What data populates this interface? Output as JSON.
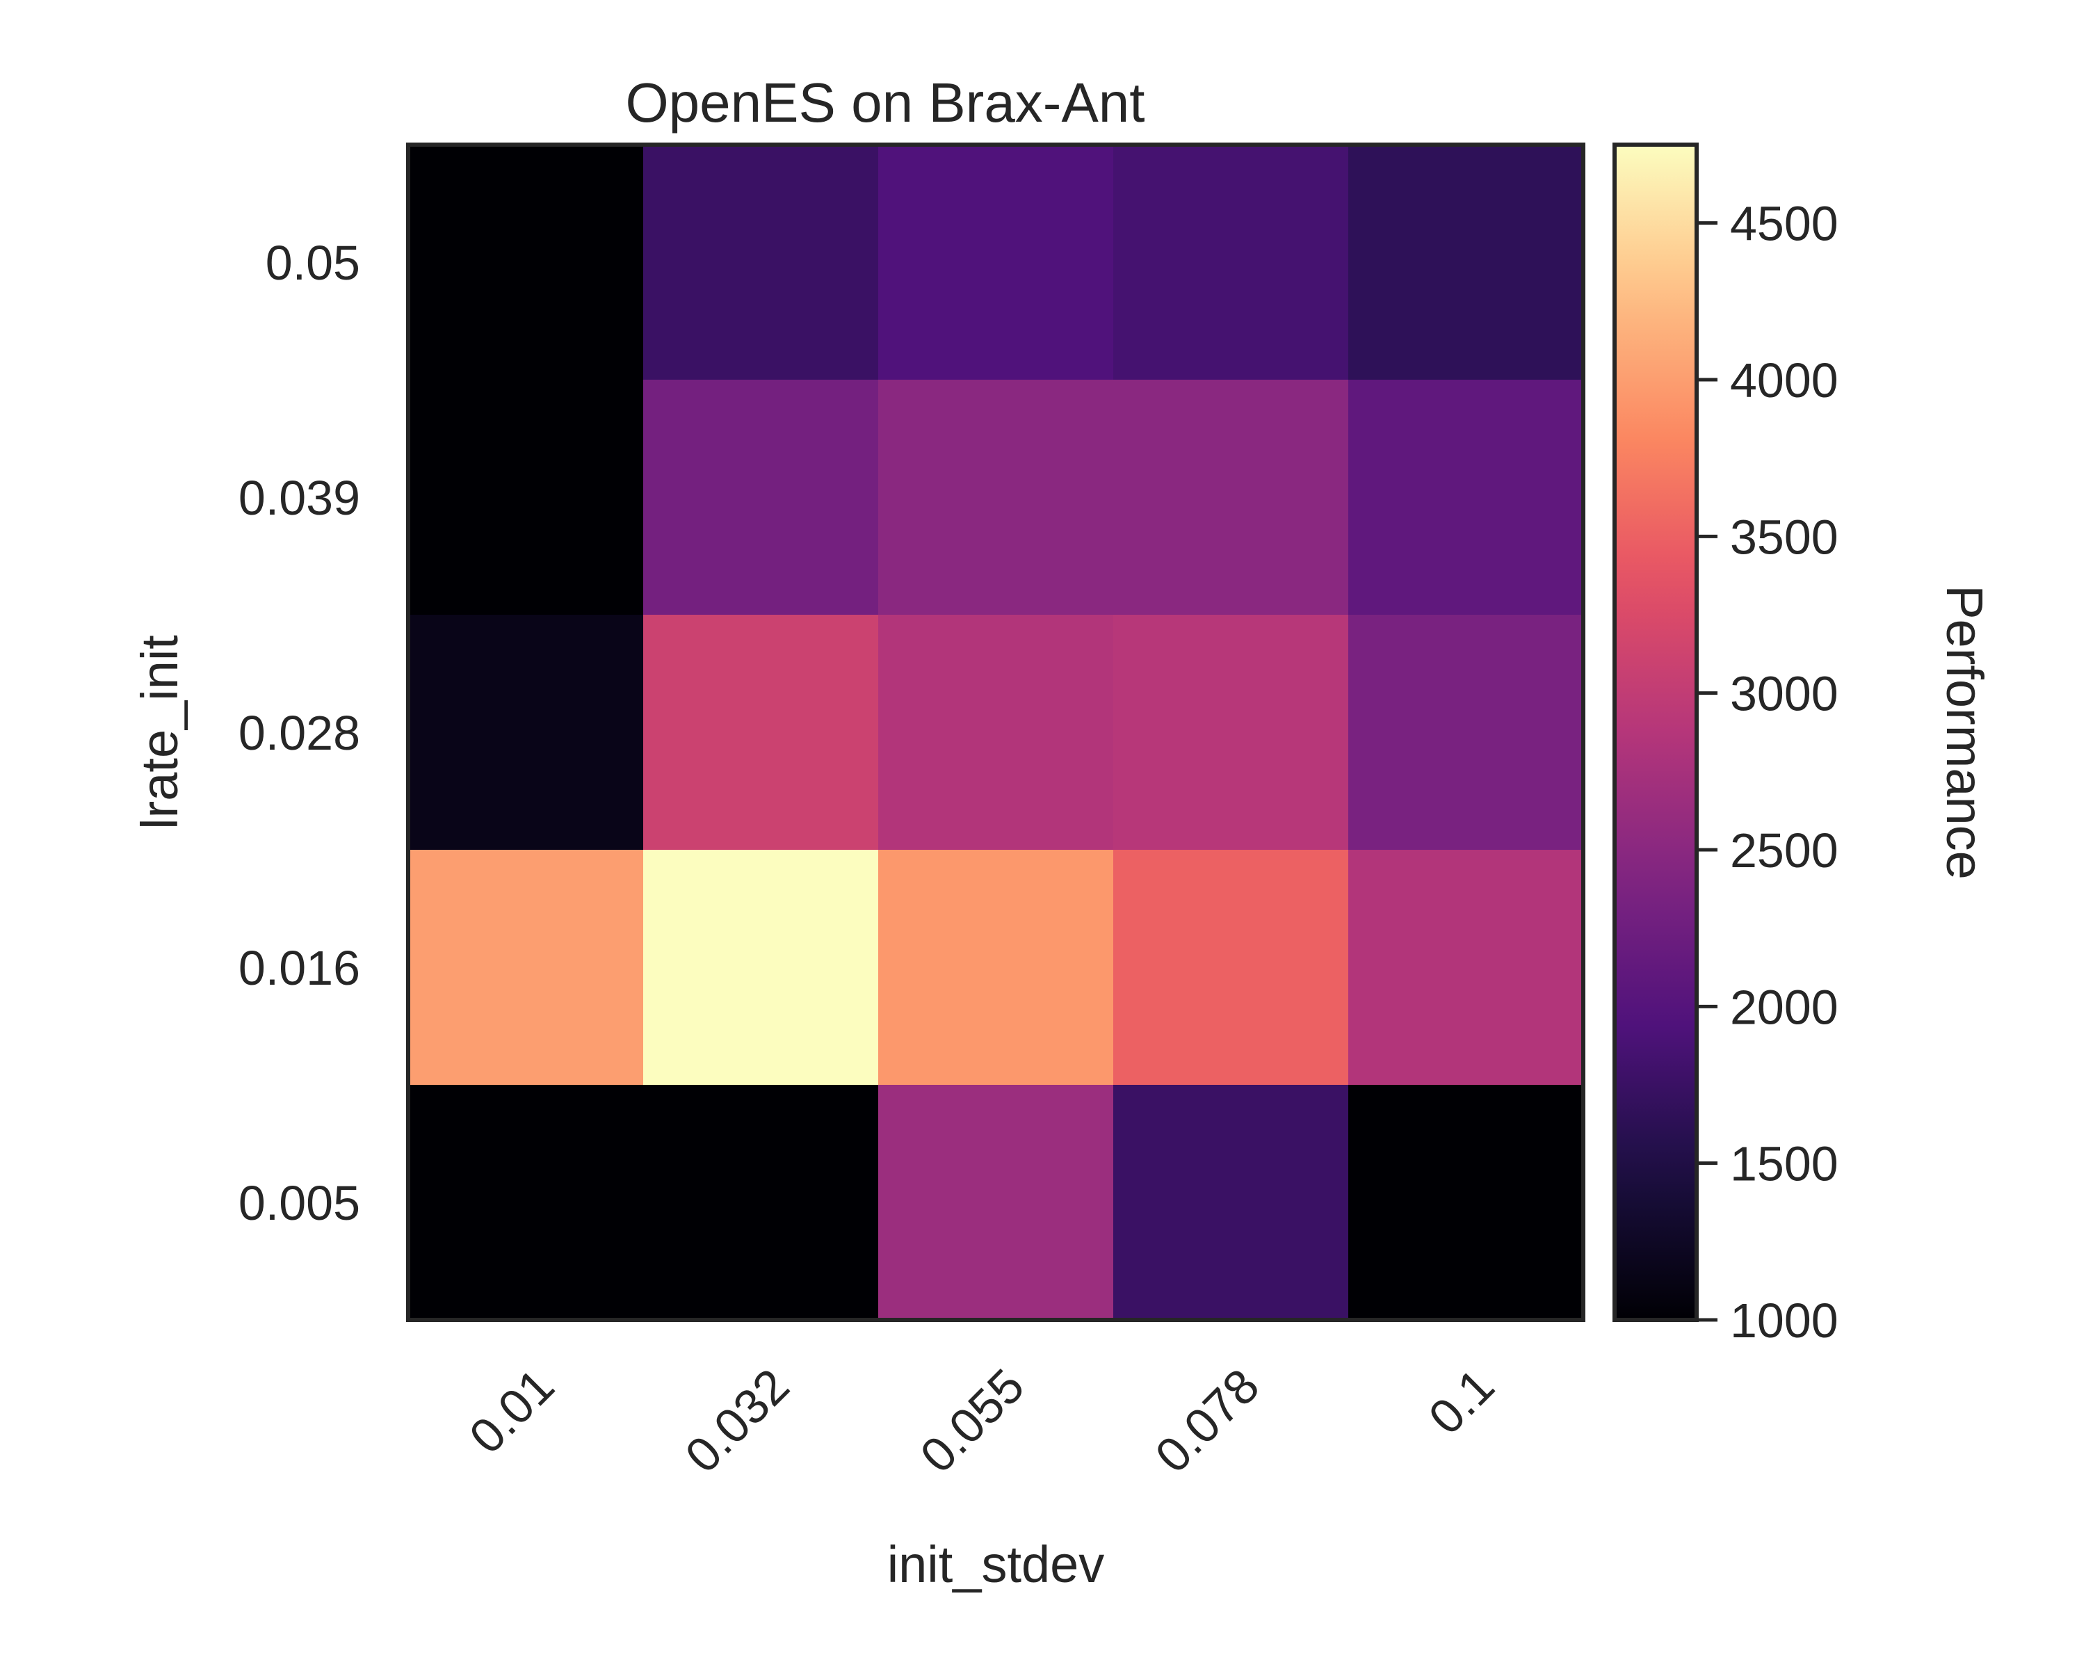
{
  "chart_data": {
    "type": "heatmap",
    "title": "OpenES on Brax-Ant",
    "xlabel": "init_stdev",
    "ylabel": "lrate_init",
    "x_categories": [
      "0.01",
      "0.032",
      "0.055",
      "0.078",
      "0.1"
    ],
    "y_categories": [
      "0.05",
      "0.039",
      "0.028",
      "0.016",
      "0.005"
    ],
    "values": [
      [
        1000,
        1750,
        1950,
        1850,
        1650
      ],
      [
        1000,
        2300,
        2500,
        2500,
        2100
      ],
      [
        1150,
        3100,
        2850,
        2900,
        2350
      ],
      [
        4000,
        4750,
        3950,
        3500,
        2850
      ],
      [
        1000,
        1000,
        2650,
        1750,
        1000
      ]
    ],
    "colorbar": {
      "label": "Performance",
      "range": [
        1000,
        4750
      ],
      "ticks": [
        "1000",
        "1500",
        "2000",
        "2500",
        "3000",
        "3500",
        "4000",
        "4500"
      ],
      "colormap": "magma"
    },
    "grid": false
  }
}
